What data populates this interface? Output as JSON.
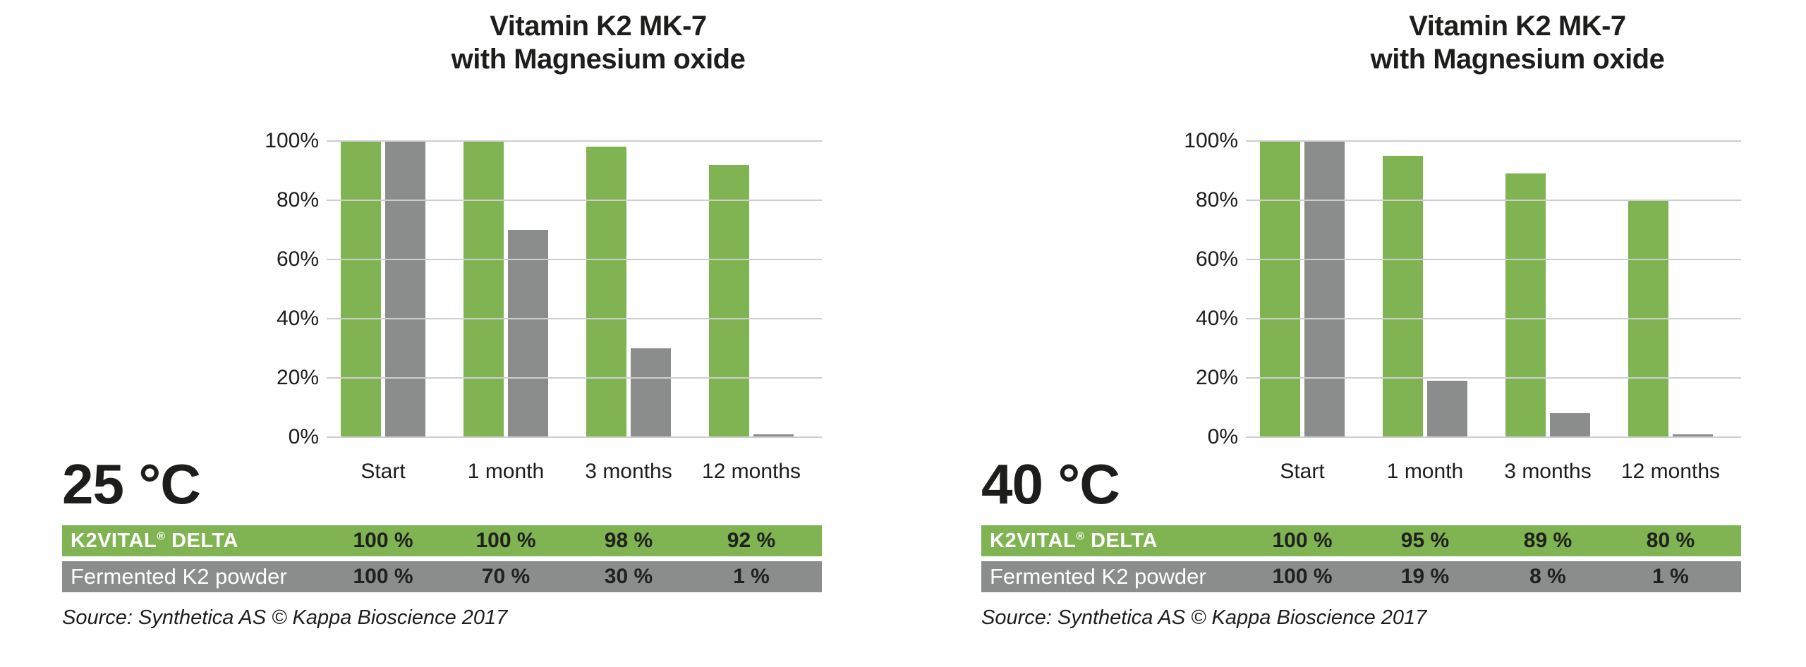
{
  "colors": {
    "green": "#80b351",
    "gray": "#8a8d8c",
    "grid": "#cdcfce",
    "text": "#1d1e1c",
    "row_label_text": "#ffffff",
    "value_text": "#20211f"
  },
  "chart_data": [
    {
      "type": "bar",
      "title": "Vitamin K2 MK-7 with Magnesium oxide",
      "condition": "25 °C",
      "categories": [
        "Start",
        "1 month",
        "3 months",
        "12 months"
      ],
      "series": [
        {
          "name": "K2VITAL® DELTA",
          "color": "#80b351",
          "values": [
            100,
            100,
            98,
            92
          ]
        },
        {
          "name": "Fermented K2 powder",
          "color": "#8a8d8c",
          "values": [
            100,
            70,
            30,
            1
          ]
        }
      ],
      "ylabel": "",
      "xlabel": "",
      "ylim": [
        0,
        100
      ],
      "yticks": [
        0,
        20,
        40,
        60,
        80,
        100
      ],
      "ytick_format": "percent",
      "grid": true,
      "legend_position": "table-below",
      "source": "Source: Synthetica AS © Kappa Bioscience 2017"
    },
    {
      "type": "bar",
      "title": "Vitamin K2 MK-7 with Magnesium oxide",
      "condition": "40 °C",
      "categories": [
        "Start",
        "1 month",
        "3 months",
        "12 months"
      ],
      "series": [
        {
          "name": "K2VITAL® DELTA",
          "color": "#80b351",
          "values": [
            100,
            95,
            89,
            80
          ]
        },
        {
          "name": "Fermented K2 powder",
          "color": "#8a8d8c",
          "values": [
            100,
            19,
            8,
            1
          ]
        }
      ],
      "ylabel": "",
      "xlabel": "",
      "ylim": [
        0,
        100
      ],
      "yticks": [
        0,
        20,
        40,
        60,
        80,
        100
      ],
      "ytick_format": "percent",
      "grid": true,
      "legend_position": "table-below",
      "source": "Source: Synthetica AS © Kappa Bioscience 2017"
    }
  ],
  "panels": [
    {
      "title_line1": "Vitamin K2 MK-7",
      "title_line2": "with Magnesium oxide",
      "temperature": "25 °C",
      "y_ticks": [
        "100%",
        "80%",
        "60%",
        "40%",
        "20%",
        "0%"
      ],
      "categories": [
        "Start",
        "1 month",
        "3 months",
        "12 months"
      ],
      "rows": [
        {
          "label_pre": "K2VITAL",
          "label_sup": "®",
          "label_post": " DELTA",
          "bg": "#80b351",
          "values": [
            100,
            100,
            98,
            92
          ],
          "cells": [
            "100 %",
            "100 %",
            "98 %",
            "92 %"
          ]
        },
        {
          "label_pre": "Fermented K2 powder",
          "label_sup": "",
          "label_post": "",
          "bg": "#8a8d8c",
          "values": [
            100,
            70,
            30,
            1
          ],
          "cells": [
            "100 %",
            "70 %",
            "30 %",
            "1 %"
          ]
        }
      ],
      "source": "Source: Synthetica AS © Kappa Bioscience 2017"
    },
    {
      "title_line1": "Vitamin K2 MK-7",
      "title_line2": "with Magnesium oxide",
      "temperature": "40 °C",
      "y_ticks": [
        "100%",
        "80%",
        "60%",
        "40%",
        "20%",
        "0%"
      ],
      "categories": [
        "Start",
        "1 month",
        "3 months",
        "12 months"
      ],
      "rows": [
        {
          "label_pre": "K2VITAL",
          "label_sup": "®",
          "label_post": " DELTA",
          "bg": "#80b351",
          "values": [
            100,
            95,
            89,
            80
          ],
          "cells": [
            "100 %",
            "95 %",
            "89 %",
            "80 %"
          ]
        },
        {
          "label_pre": "Fermented K2 powder",
          "label_sup": "",
          "label_post": "",
          "bg": "#8a8d8c",
          "values": [
            100,
            19,
            8,
            1
          ],
          "cells": [
            "100 %",
            "19 %",
            "8 %",
            "1 %"
          ]
        }
      ],
      "source": "Source: Synthetica AS © Kappa Bioscience 2017"
    }
  ]
}
